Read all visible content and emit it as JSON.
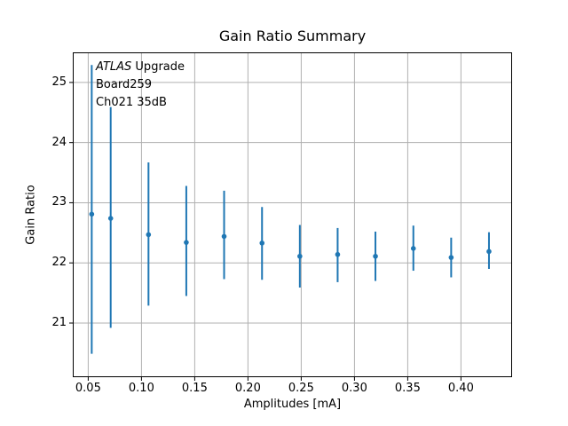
{
  "chart_data": {
    "type": "scatter",
    "title": "Gain Ratio Summary",
    "xlabel": "Amplitudes [mA]",
    "ylabel": "Gain Ratio",
    "xlim": [
      0.0355,
      0.448
    ],
    "ylim": [
      20.1,
      25.5
    ],
    "xticks": [
      0.05,
      0.1,
      0.15,
      0.2,
      0.25,
      0.3,
      0.35,
      0.4
    ],
    "xtick_labels": [
      "0.05",
      "0.10",
      "0.15",
      "0.20",
      "0.25",
      "0.30",
      "0.35",
      "0.40"
    ],
    "yticks": [
      21,
      22,
      23,
      24,
      25
    ],
    "ytick_labels": [
      "21",
      "22",
      "23",
      "24",
      "25"
    ],
    "grid": true,
    "legend": false,
    "marker": "circle",
    "annotation": {
      "line1_italic": "ATLAS",
      "line1_text": "Upgrade",
      "line2": "Board259",
      "line3": "Ch021 35dB"
    },
    "colors": {
      "series": "#1f77b4",
      "grid": "#b0b0b0",
      "axis": "#000000",
      "text": "#000000",
      "background": "#ffffff"
    },
    "series": [
      {
        "name": "gain-ratio-errorbars",
        "color": "#1f77b4",
        "x": [
          0.0533,
          0.0711,
          0.1066,
          0.1421,
          0.1776,
          0.2132,
          0.2487,
          0.2842,
          0.3197,
          0.3553,
          0.3908,
          0.4263
        ],
        "y": [
          22.81,
          22.74,
          22.47,
          22.34,
          22.44,
          22.33,
          22.11,
          22.14,
          22.11,
          22.24,
          22.09,
          22.19
        ],
        "y_low": [
          20.49,
          20.92,
          21.29,
          21.45,
          21.73,
          21.72,
          21.59,
          21.68,
          21.7,
          21.87,
          21.76,
          21.9
        ],
        "y_high": [
          25.29,
          24.59,
          23.67,
          23.28,
          23.2,
          22.93,
          22.63,
          22.58,
          22.52,
          22.62,
          22.42,
          22.51
        ]
      }
    ]
  }
}
